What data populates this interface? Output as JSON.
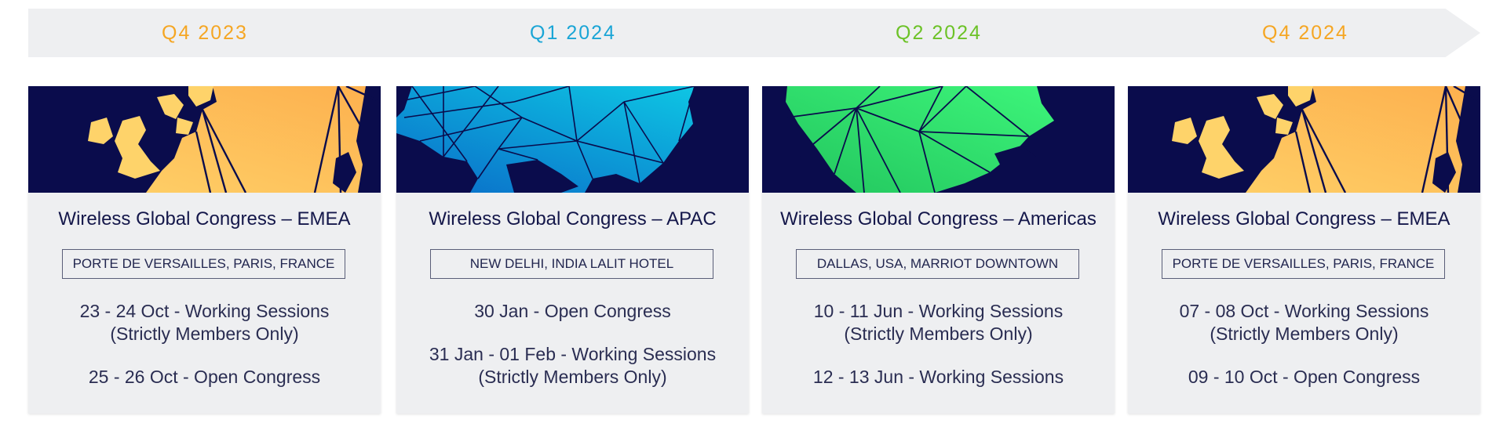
{
  "timeline": {
    "quarters": [
      {
        "label": "Q4 2023",
        "color": "#f5a623"
      },
      {
        "label": "Q1 2024",
        "color": "#1aa5d6"
      },
      {
        "label": "Q2 2024",
        "color": "#6cc227"
      },
      {
        "label": "Q4 2024",
        "color": "#f5a623"
      }
    ]
  },
  "events": [
    {
      "region_theme": "europe-map-orange",
      "title": "Wireless Global Congress – EMEA",
      "venue": "PORTE DE VERSAILLES, PARIS, FRANCE",
      "sessions": [
        {
          "line1": "23 - 24 Oct - Working Sessions",
          "line2": "(Strictly Members Only)"
        },
        {
          "line1": "25 - 26 Oct - Open Congress",
          "line2": ""
        }
      ]
    },
    {
      "region_theme": "asia-map-blue",
      "title": "Wireless Global Congress – APAC",
      "venue": "NEW DELHI, INDIA LALIT HOTEL",
      "sessions": [
        {
          "line1": "30 Jan - Open Congress",
          "line2": ""
        },
        {
          "line1": "31 Jan - 01 Feb - Working Sessions",
          "line2": "(Strictly Members Only)"
        }
      ]
    },
    {
      "region_theme": "americas-map-green",
      "title": "Wireless Global Congress – Americas",
      "venue": "DALLAS, USA, MARRIOT DOWNTOWN",
      "sessions": [
        {
          "line1": "10 - 11 Jun - Working Sessions",
          "line2": "(Strictly Members Only)"
        },
        {
          "line1": "12 - 13 Jun - Working Sessions",
          "line2": ""
        }
      ]
    },
    {
      "region_theme": "europe-map-orange",
      "title": "Wireless Global Congress – EMEA",
      "venue": "PORTE DE VERSAILLES, PARIS, FRANCE",
      "sessions": [
        {
          "line1": "07 - 08 Oct - Working Sessions",
          "line2": "(Strictly Members Only)"
        },
        {
          "line1": "09 - 10 Oct - Open Congress",
          "line2": ""
        }
      ]
    }
  ],
  "colors": {
    "navy": "#0a0c4c",
    "orange_light": "#fed36a",
    "orange_dark": "#fdb04e",
    "blue_light": "#0ecde6",
    "blue_dark": "#0a6cc8",
    "green_light": "#3df57a",
    "green_dark": "#22c55e"
  }
}
